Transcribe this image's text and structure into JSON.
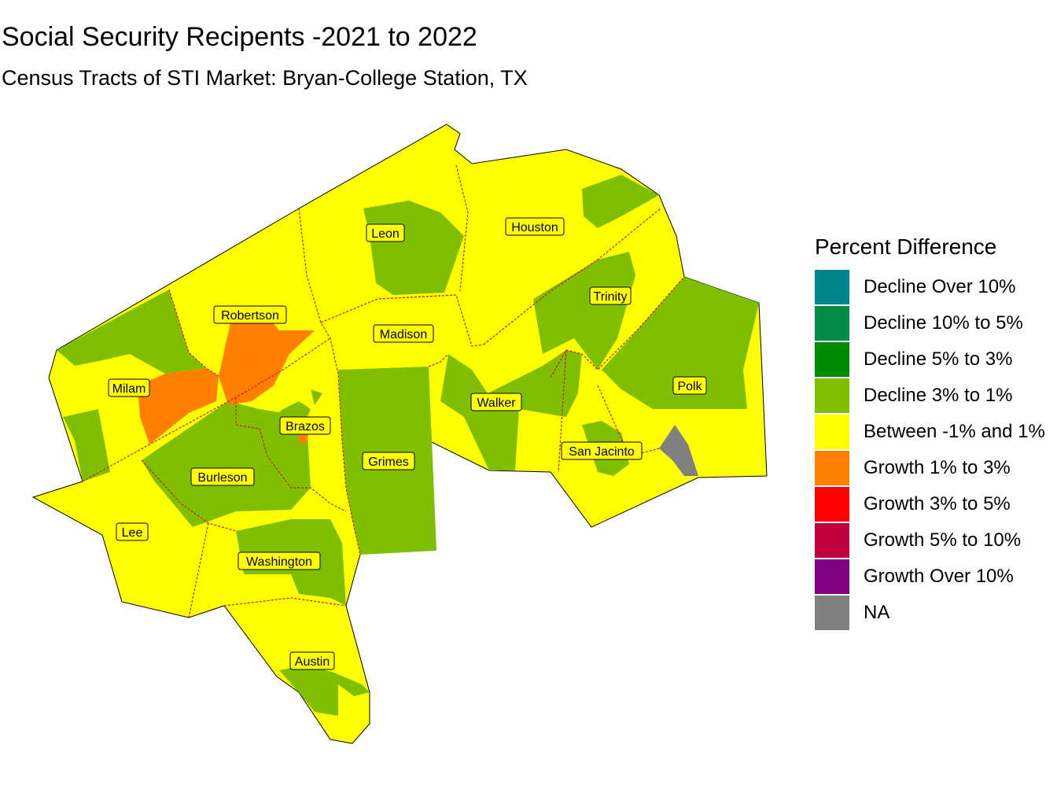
{
  "title": "Social Security Recipents -2021 to 2022",
  "subtitle": "Census Tracts of STI Market: Bryan-College Station, TX",
  "legend": {
    "title": "Percent Difference",
    "items": [
      {
        "label": "Decline Over 10%",
        "color": "#00868b"
      },
      {
        "label": "Decline 10% to 5%",
        "color": "#008b45"
      },
      {
        "label": "Decline 5% to 3%",
        "color": "#008b00"
      },
      {
        "label": "Decline 3% to 1%",
        "color": "#7fbf00"
      },
      {
        "label": "Between -1% and 1%",
        "color": "#ffff00"
      },
      {
        "label": "Growth 1% to 3%",
        "color": "#ff8000"
      },
      {
        "label": "Growth 3% to 5%",
        "color": "#ff0000"
      },
      {
        "label": "Growth 5% to 10%",
        "color": "#c0003c"
      },
      {
        "label": "Growth Over 10%",
        "color": "#800080"
      },
      {
        "label": "NA",
        "color": "#808080"
      }
    ]
  },
  "counties": [
    {
      "id": "leon",
      "label": "Leon"
    },
    {
      "id": "houston",
      "label": "Houston"
    },
    {
      "id": "trinity",
      "label": "Trinity"
    },
    {
      "id": "robertson",
      "label": "Robertson"
    },
    {
      "id": "madison",
      "label": "Madison"
    },
    {
      "id": "polk",
      "label": "Polk"
    },
    {
      "id": "milam",
      "label": "Milam"
    },
    {
      "id": "walker",
      "label": "Walker"
    },
    {
      "id": "brazos",
      "label": "Brazos"
    },
    {
      "id": "san-jacinto",
      "label": "San Jacinto"
    },
    {
      "id": "grimes",
      "label": "Grimes"
    },
    {
      "id": "burleson",
      "label": "Burleson"
    },
    {
      "id": "lee",
      "label": "Lee"
    },
    {
      "id": "washington",
      "label": "Washington"
    },
    {
      "id": "austin",
      "label": "Austin"
    }
  ]
}
